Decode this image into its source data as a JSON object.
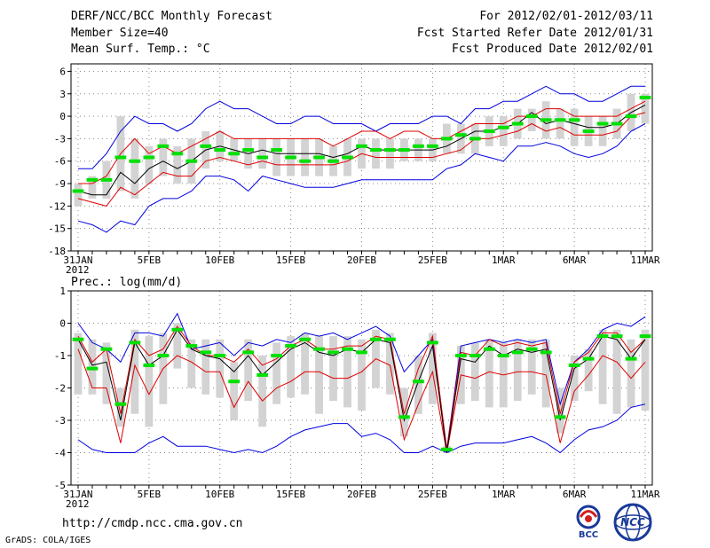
{
  "header": {
    "left": [
      "DERF/NCC/BCC Monthly Forecast",
      "Member Size=40",
      "Mean Surf. Temp.: °C"
    ],
    "right": [
      "For 2012/02/01-2012/03/11",
      "Fcst Started Refer Date 2012/01/31",
      "Fcst Produced Date 2012/02/01"
    ]
  },
  "footer": {
    "url": "http://cmdp.ncc.cma.gov.cn",
    "grads": "GrADS: COLA/IGES",
    "logo_bcc": "BCC",
    "logo_ncc": "NCC"
  },
  "colors": {
    "box": "#d3d3d3",
    "median": "#00e000",
    "mean": "#000000",
    "spread": "#e00000",
    "range": "#0000e0",
    "grid": "#888888"
  },
  "chart_data": [
    {
      "type": "line",
      "title": "Mean Surf. Temp.: °C",
      "x_days": 41,
      "x_ticks": [
        {
          "day": 0,
          "label": "31JAN",
          "sub": "2012"
        },
        {
          "day": 5,
          "label": "5FEB"
        },
        {
          "day": 10,
          "label": "10FEB"
        },
        {
          "day": 15,
          "label": "15FEB"
        },
        {
          "day": 20,
          "label": "20FEB"
        },
        {
          "day": 25,
          "label": "25FEB"
        },
        {
          "day": 30,
          "label": "1MAR"
        },
        {
          "day": 35,
          "label": "6MAR"
        },
        {
          "day": 40,
          "label": "11MAR"
        }
      ],
      "ylim": [
        -18,
        7
      ],
      "yticks": [
        -18,
        -15,
        -12,
        -9,
        -6,
        -3,
        0,
        3,
        6
      ],
      "series": [
        {
          "name": "max",
          "values": [
            -7,
            -7,
            -5,
            -2,
            0,
            -1,
            -1,
            -2,
            -1,
            1,
            2,
            1,
            1,
            0,
            -1,
            -1,
            0,
            0,
            -1,
            -1,
            -1,
            -2,
            -1,
            -1,
            -1,
            0,
            0,
            -1,
            1,
            1,
            2,
            2,
            3,
            4,
            3,
            3,
            2,
            2,
            3,
            4,
            4
          ]
        },
        {
          "name": "spread_upper",
          "values": [
            -9,
            -9,
            -8,
            -5,
            -3,
            -5,
            -4,
            -5,
            -4,
            -3,
            -2,
            -3,
            -3,
            -3,
            -3,
            -3,
            -3,
            -3,
            -4,
            -3,
            -2,
            -2,
            -3,
            -2,
            -2,
            -3,
            -3,
            -2,
            -1,
            -1,
            -1,
            0,
            0,
            1,
            1,
            0,
            0,
            0,
            0,
            1,
            2
          ]
        },
        {
          "name": "mean",
          "values": [
            -10,
            -10.5,
            -10.5,
            -7.5,
            -9,
            -7,
            -6,
            -7,
            -6,
            -4.5,
            -4,
            -4.5,
            -5,
            -4.5,
            -5,
            -5,
            -5,
            -5,
            -5.5,
            -5,
            -4,
            -4.5,
            -4.5,
            -4.5,
            -4.5,
            -4.5,
            -4,
            -3,
            -2,
            -2,
            -1.5,
            -1,
            0.5,
            -1,
            -0.5,
            -1,
            -1.5,
            -1.5,
            -1,
            0.5,
            1.5
          ]
        },
        {
          "name": "spread_lower",
          "values": [
            -11,
            -11.5,
            -12,
            -9.5,
            -10.5,
            -9,
            -7.5,
            -8,
            -8,
            -6,
            -5.5,
            -6,
            -6.5,
            -6,
            -6.5,
            -6.5,
            -6.5,
            -6.5,
            -6.5,
            -6,
            -5,
            -5.5,
            -5.5,
            -5.5,
            -5.5,
            -5.5,
            -5,
            -4.5,
            -3,
            -3,
            -2.5,
            -2,
            -1,
            -2,
            -1.5,
            -2.5,
            -2.5,
            -2.5,
            -2,
            0,
            0.5
          ]
        },
        {
          "name": "min",
          "values": [
            -14,
            -14.5,
            -15.5,
            -14,
            -14.5,
            -12,
            -11,
            -11,
            -10,
            -8,
            -8,
            -8.5,
            -10,
            -8,
            -8.5,
            -9,
            -9.5,
            -9.5,
            -9.5,
            -9,
            -8.5,
            -8.5,
            -8.5,
            -8.5,
            -8.5,
            -8.5,
            -7,
            -6.5,
            -5,
            -5.5,
            -6,
            -4,
            -4,
            -3.5,
            -4,
            -5,
            -5.5,
            -5,
            -4,
            -2,
            -1
          ]
        },
        {
          "name": "median",
          "values": [
            -10,
            -8.5,
            -8.5,
            -5.5,
            -6,
            -5.5,
            -4,
            -5,
            -6,
            -4,
            -4.5,
            -5,
            -4.5,
            -5.5,
            -4.5,
            -5.5,
            -6,
            -5.5,
            -6,
            -5.5,
            -4,
            -4.5,
            -4.5,
            -4.5,
            -4,
            -4,
            -3,
            -2.5,
            -3,
            -2,
            -1.5,
            -1,
            0,
            -0.5,
            -0.5,
            -0.5,
            -2,
            -1,
            -1,
            0,
            2.5
          ]
        },
        {
          "name": "box_top",
          "values": [
            -9,
            -8,
            -6,
            0,
            -3,
            -4,
            -3,
            -4,
            -3,
            -2,
            -2,
            -3,
            -3,
            -3,
            -3,
            -3,
            -3,
            -3,
            -4,
            -3,
            -3,
            -3,
            -3,
            -3,
            -3,
            -3,
            -1,
            -1,
            -1,
            0,
            0,
            1,
            1,
            2,
            1,
            1,
            0,
            0,
            1,
            3,
            3
          ]
        },
        {
          "name": "box_bottom",
          "values": [
            -12,
            -11,
            -11,
            -10,
            -11,
            -9,
            -8,
            -9,
            -9,
            -7,
            -6,
            -6,
            -7,
            -7,
            -8,
            -8,
            -8,
            -8,
            -8,
            -8,
            -7,
            -7,
            -7,
            -6,
            -6,
            -6,
            -5,
            -5,
            -5,
            -4,
            -4,
            -3,
            -2,
            -3,
            -3,
            -4,
            -4,
            -4,
            -3,
            -2,
            -1
          ]
        }
      ]
    },
    {
      "type": "line",
      "title": "Prec.: log(mm/d)",
      "x_days": 41,
      "x_ticks": [
        {
          "day": 0,
          "label": "31JAN",
          "sub": "2012"
        },
        {
          "day": 5,
          "label": "5FEB"
        },
        {
          "day": 10,
          "label": "10FEB"
        },
        {
          "day": 15,
          "label": "15FEB"
        },
        {
          "day": 20,
          "label": "20FEB"
        },
        {
          "day": 25,
          "label": "25FEB"
        },
        {
          "day": 30,
          "label": "1MAR"
        },
        {
          "day": 35,
          "label": "6MAR"
        },
        {
          "day": 40,
          "label": "11MAR"
        }
      ],
      "ylim": [
        -5,
        1
      ],
      "yticks": [
        -5,
        -4,
        -3,
        -2,
        -1,
        0,
        1
      ],
      "series": [
        {
          "name": "max",
          "values": [
            0,
            -0.6,
            -0.8,
            -1.2,
            -0.3,
            -0.3,
            -0.4,
            0.3,
            -0.8,
            -0.7,
            -0.6,
            -1,
            -0.6,
            -0.7,
            -0.5,
            -0.6,
            -0.3,
            -0.4,
            -0.3,
            -0.5,
            -0.3,
            -0.1,
            -0.4,
            -1.5,
            -1,
            -0.5,
            -3.9,
            -0.7,
            -0.6,
            -0.5,
            -0.6,
            -0.5,
            -0.6,
            -0.5,
            -2.5,
            -1.2,
            -0.8,
            -0.2,
            0,
            -0.1,
            0.2
          ]
        },
        {
          "name": "spread_upper",
          "values": [
            -0.4,
            -1.2,
            -0.8,
            -2.8,
            -0.5,
            -1,
            -0.8,
            -0.1,
            -0.7,
            -1,
            -1,
            -1.2,
            -0.8,
            -1.3,
            -1.1,
            -0.7,
            -0.5,
            -0.8,
            -0.8,
            -0.7,
            -0.7,
            -0.4,
            -0.5,
            -2.8,
            -1.4,
            -0.4,
            -3.9,
            -0.9,
            -1,
            -0.5,
            -0.7,
            -0.6,
            -0.7,
            -0.6,
            -2.8,
            -1.2,
            -0.9,
            -0.3,
            -0.3,
            -0.9,
            -0.5
          ]
        },
        {
          "name": "mean",
          "values": [
            -0.5,
            -1.3,
            -1.2,
            -3,
            -0.6,
            -1.3,
            -1,
            -0.2,
            -0.8,
            -1,
            -1.1,
            -1.5,
            -1,
            -1.6,
            -1.2,
            -0.8,
            -0.6,
            -0.9,
            -1,
            -0.8,
            -0.9,
            -0.5,
            -0.6,
            -3,
            -1.8,
            -0.7,
            -4,
            -1.1,
            -1.2,
            -0.7,
            -1,
            -0.8,
            -0.9,
            -0.8,
            -3,
            -1.4,
            -1.1,
            -0.4,
            -0.5,
            -1.1,
            -0.5
          ]
        },
        {
          "name": "spread_lower",
          "values": [
            -0.8,
            -2,
            -2,
            -3.7,
            -1.3,
            -2.2,
            -1.4,
            -1,
            -1.2,
            -1.5,
            -1.5,
            -2.6,
            -1.8,
            -2.4,
            -2,
            -1.8,
            -1.5,
            -1.5,
            -1.7,
            -1.7,
            -1.5,
            -1.1,
            -1.3,
            -3.6,
            -2.5,
            -1.5,
            -4,
            -1.6,
            -1.7,
            -1.5,
            -1.6,
            -1.5,
            -1.5,
            -1.6,
            -3.7,
            -2.1,
            -1.6,
            -1,
            -1.2,
            -1.7,
            -1.2
          ]
        },
        {
          "name": "min",
          "values": [
            -3.6,
            -3.9,
            -4,
            -4,
            -4,
            -3.7,
            -3.5,
            -3.8,
            -3.8,
            -3.8,
            -3.9,
            -4,
            -3.9,
            -4,
            -3.8,
            -3.5,
            -3.3,
            -3.2,
            -3.1,
            -3.1,
            -3.5,
            -3.4,
            -3.6,
            -4,
            -4,
            -3.8,
            -4,
            -3.8,
            -3.7,
            -3.7,
            -3.7,
            -3.6,
            -3.5,
            -3.7,
            -4,
            -3.6,
            -3.3,
            -3.2,
            -3,
            -2.6,
            -2.5
          ]
        },
        {
          "name": "median",
          "values": [
            -0.5,
            -1.4,
            -0.8,
            -2.5,
            -0.6,
            -1.3,
            -1,
            -0.2,
            -0.7,
            -0.9,
            -1,
            -1.8,
            -0.9,
            -1.6,
            -1,
            -0.7,
            -0.5,
            -0.8,
            -0.9,
            -0.8,
            -0.9,
            -0.5,
            -0.5,
            -2.9,
            -1.8,
            -0.6,
            -3.9,
            -1,
            -1,
            -0.8,
            -1,
            -0.9,
            -0.8,
            -0.9,
            -2.9,
            -1.3,
            -1.1,
            -0.4,
            -0.4,
            -1.1,
            -0.4
          ]
        },
        {
          "name": "box_top",
          "values": [
            -0.3,
            -0.5,
            -0.6,
            -2,
            -0.2,
            -0.4,
            -0.3,
            0,
            -0.5,
            -0.5,
            -0.5,
            -1.2,
            -0.5,
            -1,
            -0.6,
            -0.4,
            -0.3,
            -0.4,
            -0.4,
            -0.4,
            -0.5,
            -0.2,
            -0.3,
            -2,
            -1,
            -0.3,
            -3.8,
            -0.7,
            -0.6,
            -0.5,
            -0.6,
            -0.5,
            -0.5,
            -0.5,
            -2,
            -1,
            -0.8,
            -0.2,
            -0.2,
            -0.5,
            -0.2
          ]
        },
        {
          "name": "box_bottom",
          "values": [
            -2.2,
            -2.2,
            -2.5,
            -3.2,
            -2.8,
            -3.2,
            -2.5,
            -1.4,
            -2,
            -2.2,
            -2.3,
            -3,
            -2.4,
            -3.2,
            -2.5,
            -2.3,
            -2.2,
            -2.8,
            -2.4,
            -2.6,
            -2.7,
            -2,
            -2.2,
            -3.5,
            -2.8,
            -2.5,
            -4,
            -2.5,
            -2.4,
            -2.6,
            -2.6,
            -2.4,
            -2.2,
            -2.6,
            -3.4,
            -2.4,
            -2.1,
            -2.5,
            -2.8,
            -2.6,
            -2.7
          ]
        }
      ]
    }
  ]
}
